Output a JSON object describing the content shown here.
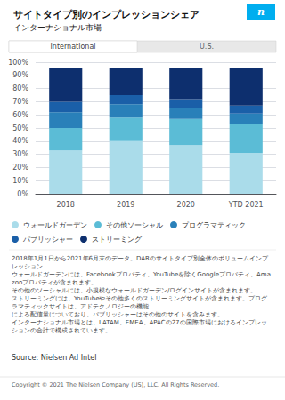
{
  "chart_data": {
    "type": "bar",
    "stacked": true,
    "title": "サイトタイプ別のインプレッションシェア",
    "subtitle": "インターナショナル市場",
    "categories": [
      "2018",
      "2019",
      "2020",
      "YTD 2021"
    ],
    "series": [
      {
        "name": "ウォールドガーデン",
        "color": "#aadcea",
        "values": [
          33,
          40,
          37,
          31
        ]
      },
      {
        "name": "その他ソーシャル",
        "color": "#5bbcd6",
        "values": [
          17,
          18,
          20,
          22
        ]
      },
      {
        "name": "プログラマティック",
        "color": "#2980b9",
        "values": [
          12,
          10,
          8,
          8
        ]
      },
      {
        "name": "パブリッシャー",
        "color": "#1a5fa8",
        "values": [
          8,
          7,
          7,
          6
        ]
      },
      {
        "name": "ストリーミング",
        "color": "#0d2f6e",
        "values": [
          26,
          21,
          24,
          29
        ]
      }
    ],
    "ylim": [
      0,
      100
    ],
    "yticks": [
      {
        "value": 0,
        "label": "0%"
      },
      {
        "value": 10,
        "label": "10%"
      },
      {
        "value": 20,
        "label": "20%"
      },
      {
        "value": 30,
        "label": "30%"
      },
      {
        "value": 40,
        "label": "40%"
      },
      {
        "value": 50,
        "label": "50%"
      },
      {
        "value": 60,
        "label": "60%"
      },
      {
        "value": 70,
        "label": "70%"
      },
      {
        "value": 80,
        "label": "80%"
      },
      {
        "value": 90,
        "label": "90%"
      },
      {
        "value": 100,
        "label": "100%"
      }
    ],
    "grid": true,
    "legend": "bottom",
    "annotations": [
      "n",
      "International",
      "U.S.",
      "2018年1月1日から2021年6月末のデータ。DARのサイトタイプ別全体のボリュームインプレッション",
      "ウォールドガーデンには、Facebookプロパティ、YouTubeを除くGoogleプロパティ、Amazonプロパティが含まれます。",
      "その他のソーシャルには、小規模なウォールドガーデン/ログインサイトが含まれます。",
      "ストリーミングには、YouTubeやその他多くのストリーミングサイトが含まれます。プログラマティックサイトは、アドテクノロジーの機能",
      "による配信量についており、パブリッシャーはその他のサイトを含みます。",
      "インターナショナル市場とは、LATAM、EMEA、APACの27の国際市場におけるインプレッションの合計で構成されています。",
      "Source: Nielsen Ad Intel",
      "Copyright © 2021 The Nielsen Company (US), LLC. All Rights Reserved."
    ]
  }
}
